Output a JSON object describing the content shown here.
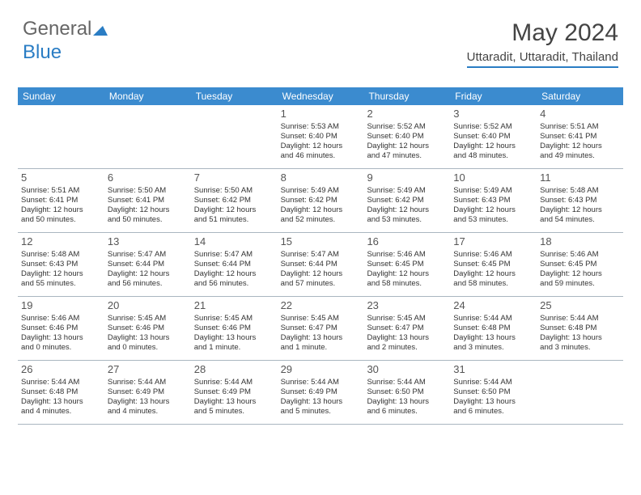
{
  "logo": {
    "text1": "General",
    "text2": "Blue"
  },
  "header": {
    "month_title": "May 2024",
    "location": "Uttaradit, Uttaradit, Thailand"
  },
  "colors": {
    "header_bar": "#3b8bcf",
    "accent": "#2a7dc4",
    "row_border": "#aab6c0",
    "text": "#333333",
    "daynum": "#555555"
  },
  "weekdays": [
    "Sunday",
    "Monday",
    "Tuesday",
    "Wednesday",
    "Thursday",
    "Friday",
    "Saturday"
  ],
  "weeks": [
    [
      null,
      null,
      null,
      {
        "n": "1",
        "sr": "Sunrise: 5:53 AM",
        "ss": "Sunset: 6:40 PM",
        "d1": "Daylight: 12 hours",
        "d2": "and 46 minutes."
      },
      {
        "n": "2",
        "sr": "Sunrise: 5:52 AM",
        "ss": "Sunset: 6:40 PM",
        "d1": "Daylight: 12 hours",
        "d2": "and 47 minutes."
      },
      {
        "n": "3",
        "sr": "Sunrise: 5:52 AM",
        "ss": "Sunset: 6:40 PM",
        "d1": "Daylight: 12 hours",
        "d2": "and 48 minutes."
      },
      {
        "n": "4",
        "sr": "Sunrise: 5:51 AM",
        "ss": "Sunset: 6:41 PM",
        "d1": "Daylight: 12 hours",
        "d2": "and 49 minutes."
      }
    ],
    [
      {
        "n": "5",
        "sr": "Sunrise: 5:51 AM",
        "ss": "Sunset: 6:41 PM",
        "d1": "Daylight: 12 hours",
        "d2": "and 50 minutes."
      },
      {
        "n": "6",
        "sr": "Sunrise: 5:50 AM",
        "ss": "Sunset: 6:41 PM",
        "d1": "Daylight: 12 hours",
        "d2": "and 50 minutes."
      },
      {
        "n": "7",
        "sr": "Sunrise: 5:50 AM",
        "ss": "Sunset: 6:42 PM",
        "d1": "Daylight: 12 hours",
        "d2": "and 51 minutes."
      },
      {
        "n": "8",
        "sr": "Sunrise: 5:49 AM",
        "ss": "Sunset: 6:42 PM",
        "d1": "Daylight: 12 hours",
        "d2": "and 52 minutes."
      },
      {
        "n": "9",
        "sr": "Sunrise: 5:49 AM",
        "ss": "Sunset: 6:42 PM",
        "d1": "Daylight: 12 hours",
        "d2": "and 53 minutes."
      },
      {
        "n": "10",
        "sr": "Sunrise: 5:49 AM",
        "ss": "Sunset: 6:43 PM",
        "d1": "Daylight: 12 hours",
        "d2": "and 53 minutes."
      },
      {
        "n": "11",
        "sr": "Sunrise: 5:48 AM",
        "ss": "Sunset: 6:43 PM",
        "d1": "Daylight: 12 hours",
        "d2": "and 54 minutes."
      }
    ],
    [
      {
        "n": "12",
        "sr": "Sunrise: 5:48 AM",
        "ss": "Sunset: 6:43 PM",
        "d1": "Daylight: 12 hours",
        "d2": "and 55 minutes."
      },
      {
        "n": "13",
        "sr": "Sunrise: 5:47 AM",
        "ss": "Sunset: 6:44 PM",
        "d1": "Daylight: 12 hours",
        "d2": "and 56 minutes."
      },
      {
        "n": "14",
        "sr": "Sunrise: 5:47 AM",
        "ss": "Sunset: 6:44 PM",
        "d1": "Daylight: 12 hours",
        "d2": "and 56 minutes."
      },
      {
        "n": "15",
        "sr": "Sunrise: 5:47 AM",
        "ss": "Sunset: 6:44 PM",
        "d1": "Daylight: 12 hours",
        "d2": "and 57 minutes."
      },
      {
        "n": "16",
        "sr": "Sunrise: 5:46 AM",
        "ss": "Sunset: 6:45 PM",
        "d1": "Daylight: 12 hours",
        "d2": "and 58 minutes."
      },
      {
        "n": "17",
        "sr": "Sunrise: 5:46 AM",
        "ss": "Sunset: 6:45 PM",
        "d1": "Daylight: 12 hours",
        "d2": "and 58 minutes."
      },
      {
        "n": "18",
        "sr": "Sunrise: 5:46 AM",
        "ss": "Sunset: 6:45 PM",
        "d1": "Daylight: 12 hours",
        "d2": "and 59 minutes."
      }
    ],
    [
      {
        "n": "19",
        "sr": "Sunrise: 5:46 AM",
        "ss": "Sunset: 6:46 PM",
        "d1": "Daylight: 13 hours",
        "d2": "and 0 minutes."
      },
      {
        "n": "20",
        "sr": "Sunrise: 5:45 AM",
        "ss": "Sunset: 6:46 PM",
        "d1": "Daylight: 13 hours",
        "d2": "and 0 minutes."
      },
      {
        "n": "21",
        "sr": "Sunrise: 5:45 AM",
        "ss": "Sunset: 6:46 PM",
        "d1": "Daylight: 13 hours",
        "d2": "and 1 minute."
      },
      {
        "n": "22",
        "sr": "Sunrise: 5:45 AM",
        "ss": "Sunset: 6:47 PM",
        "d1": "Daylight: 13 hours",
        "d2": "and 1 minute."
      },
      {
        "n": "23",
        "sr": "Sunrise: 5:45 AM",
        "ss": "Sunset: 6:47 PM",
        "d1": "Daylight: 13 hours",
        "d2": "and 2 minutes."
      },
      {
        "n": "24",
        "sr": "Sunrise: 5:44 AM",
        "ss": "Sunset: 6:48 PM",
        "d1": "Daylight: 13 hours",
        "d2": "and 3 minutes."
      },
      {
        "n": "25",
        "sr": "Sunrise: 5:44 AM",
        "ss": "Sunset: 6:48 PM",
        "d1": "Daylight: 13 hours",
        "d2": "and 3 minutes."
      }
    ],
    [
      {
        "n": "26",
        "sr": "Sunrise: 5:44 AM",
        "ss": "Sunset: 6:48 PM",
        "d1": "Daylight: 13 hours",
        "d2": "and 4 minutes."
      },
      {
        "n": "27",
        "sr": "Sunrise: 5:44 AM",
        "ss": "Sunset: 6:49 PM",
        "d1": "Daylight: 13 hours",
        "d2": "and 4 minutes."
      },
      {
        "n": "28",
        "sr": "Sunrise: 5:44 AM",
        "ss": "Sunset: 6:49 PM",
        "d1": "Daylight: 13 hours",
        "d2": "and 5 minutes."
      },
      {
        "n": "29",
        "sr": "Sunrise: 5:44 AM",
        "ss": "Sunset: 6:49 PM",
        "d1": "Daylight: 13 hours",
        "d2": "and 5 minutes."
      },
      {
        "n": "30",
        "sr": "Sunrise: 5:44 AM",
        "ss": "Sunset: 6:50 PM",
        "d1": "Daylight: 13 hours",
        "d2": "and 6 minutes."
      },
      {
        "n": "31",
        "sr": "Sunrise: 5:44 AM",
        "ss": "Sunset: 6:50 PM",
        "d1": "Daylight: 13 hours",
        "d2": "and 6 minutes."
      },
      null
    ]
  ]
}
